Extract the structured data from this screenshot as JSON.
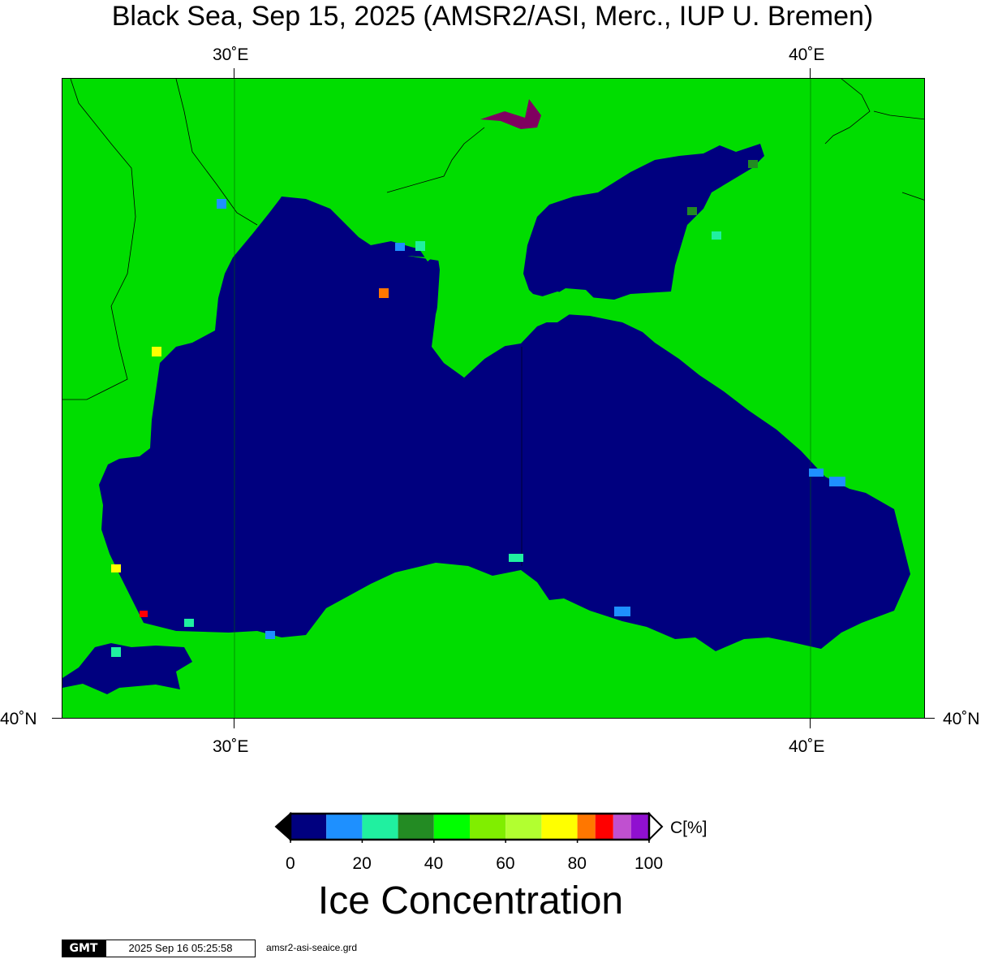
{
  "title": "Black Sea, Sep 15, 2025 (AMSR2/ASI, Merc., IUP U. Bremen)",
  "map": {
    "lon_ticks_top": [
      "30˚E",
      "40˚E"
    ],
    "lon_ticks_bottom": [
      "30˚E",
      "40˚E"
    ],
    "lat_ticks_left": [
      "40˚N"
    ],
    "lat_ticks_right": [
      "40˚N"
    ],
    "colors": {
      "land": "#00dd00",
      "water_no_ice": "#00007f",
      "flag": "#800060",
      "coast_line": "#000000"
    }
  },
  "colorbar": {
    "unit_label": "C[%]",
    "tick_labels": [
      "0",
      "20",
      "40",
      "60",
      "80",
      "100"
    ],
    "title": "Ice Concentration",
    "colors": [
      "#00007f",
      "#1e90ff",
      "#20f0a0",
      "#238b23",
      "#00ff00",
      "#80ee00",
      "#b2ff30",
      "#ffff00",
      "#ff7700",
      "#ff0000",
      "#c050d0",
      "#9010d0"
    ]
  },
  "footer": {
    "logo_text": "GMT",
    "timestamp": "2025 Sep 16 05:25:58",
    "filename": "amsr2-asi-seaice.grd"
  }
}
